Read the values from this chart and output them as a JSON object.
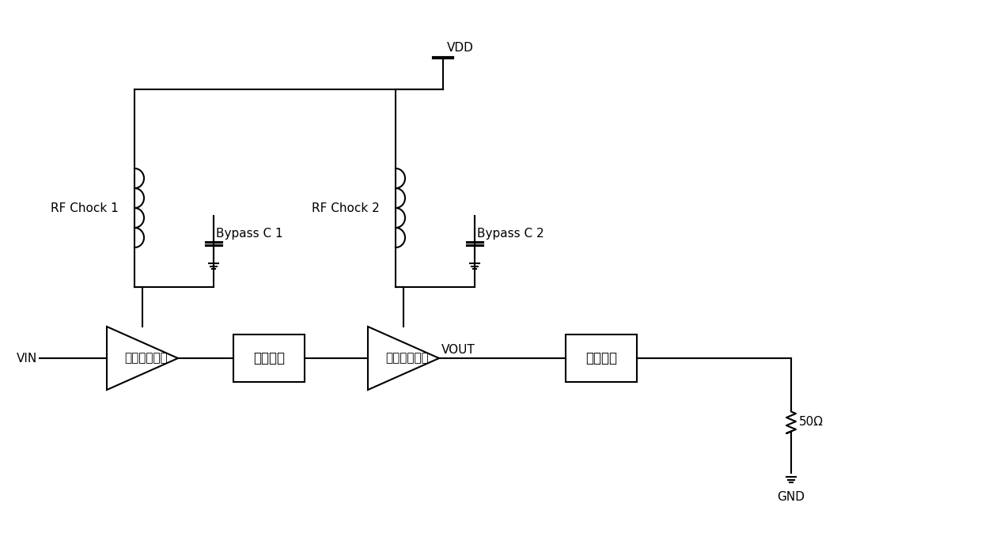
{
  "title": "",
  "background_color": "#ffffff",
  "line_color": "#000000",
  "line_width": 1.5,
  "labels": {
    "VIN": "VIN",
    "VOUT": "VOUT",
    "VDD": "VDD",
    "GND": "GND",
    "rf_chock1": "RF Chock 1",
    "rf_chock2": "RF Chock 2",
    "bypass_c1": "Bypass C 1",
    "bypass_c2": "Bypass C 2",
    "amp1": "驱动级放大器",
    "match": "级间匹配",
    "amp2": "功率级放大器",
    "load": "负载匹配",
    "resistor": "50Ω"
  },
  "font_size_labels": 11,
  "font_size_chinese": 12
}
